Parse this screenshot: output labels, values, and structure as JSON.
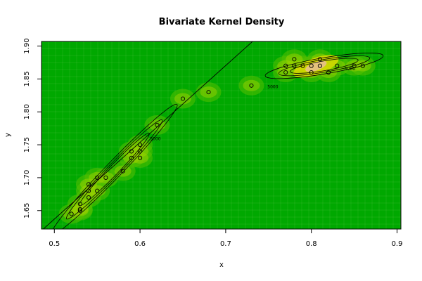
{
  "chart_data": {
    "type": "heatmap",
    "title": "Bivariate Kernel Density",
    "xlabel": "x",
    "ylabel": "y",
    "xlim": [
      0.485,
      0.9045
    ],
    "ylim": [
      1.622,
      1.907
    ],
    "x_ticks": [
      "0.5",
      "0.6",
      "0.7",
      "0.8",
      "0.9"
    ],
    "y_ticks": [
      "1.65",
      "1.70",
      "1.75",
      "1.80",
      "1.85",
      "1.90"
    ],
    "x_tick_values": [
      0.5,
      0.6,
      0.7,
      0.8,
      0.9
    ],
    "y_tick_values": [
      1.65,
      1.7,
      1.75,
      1.8,
      1.85,
      1.9
    ],
    "contour_labels": [
      {
        "text": "5000",
        "x": 0.618,
        "y": 1.757
      },
      {
        "text": "5000",
        "x": 0.755,
        "y": 1.836
      },
      {
        "text": "5000",
        "x": 0.845,
        "y": 1.863
      }
    ],
    "points": [
      [
        0.52,
        1.645
      ],
      [
        0.53,
        1.65
      ],
      [
        0.53,
        1.66
      ],
      [
        0.53,
        1.652
      ],
      [
        0.54,
        1.67
      ],
      [
        0.54,
        1.68
      ],
      [
        0.54,
        1.69
      ],
      [
        0.55,
        1.68
      ],
      [
        0.55,
        1.7
      ],
      [
        0.56,
        1.7
      ],
      [
        0.58,
        1.71
      ],
      [
        0.59,
        1.73
      ],
      [
        0.59,
        1.74
      ],
      [
        0.6,
        1.73
      ],
      [
        0.6,
        1.74
      ],
      [
        0.6,
        1.75
      ],
      [
        0.62,
        1.78
      ],
      [
        0.65,
        1.82
      ],
      [
        0.68,
        1.83
      ],
      [
        0.73,
        1.84
      ],
      [
        0.77,
        1.86
      ],
      [
        0.77,
        1.87
      ],
      [
        0.78,
        1.87
      ],
      [
        0.78,
        1.88
      ],
      [
        0.79,
        1.87
      ],
      [
        0.8,
        1.86
      ],
      [
        0.8,
        1.87
      ],
      [
        0.81,
        1.87
      ],
      [
        0.81,
        1.88
      ],
      [
        0.82,
        1.86
      ],
      [
        0.83,
        1.87
      ],
      [
        0.85,
        1.87
      ],
      [
        0.86,
        1.87
      ]
    ],
    "regression_line": {
      "intercept": 1.0537,
      "slope": 1.1667
    },
    "colors": {
      "background": "#00a800",
      "plot_outline": "#000000",
      "light_band": "#55c000",
      "mid_band": "#9bd200",
      "high_band": "#d8d800",
      "peak_band": "#e8c08a",
      "contour": "#000000",
      "points": "#000000",
      "grid": "#d0e8a0"
    },
    "grid": true
  }
}
